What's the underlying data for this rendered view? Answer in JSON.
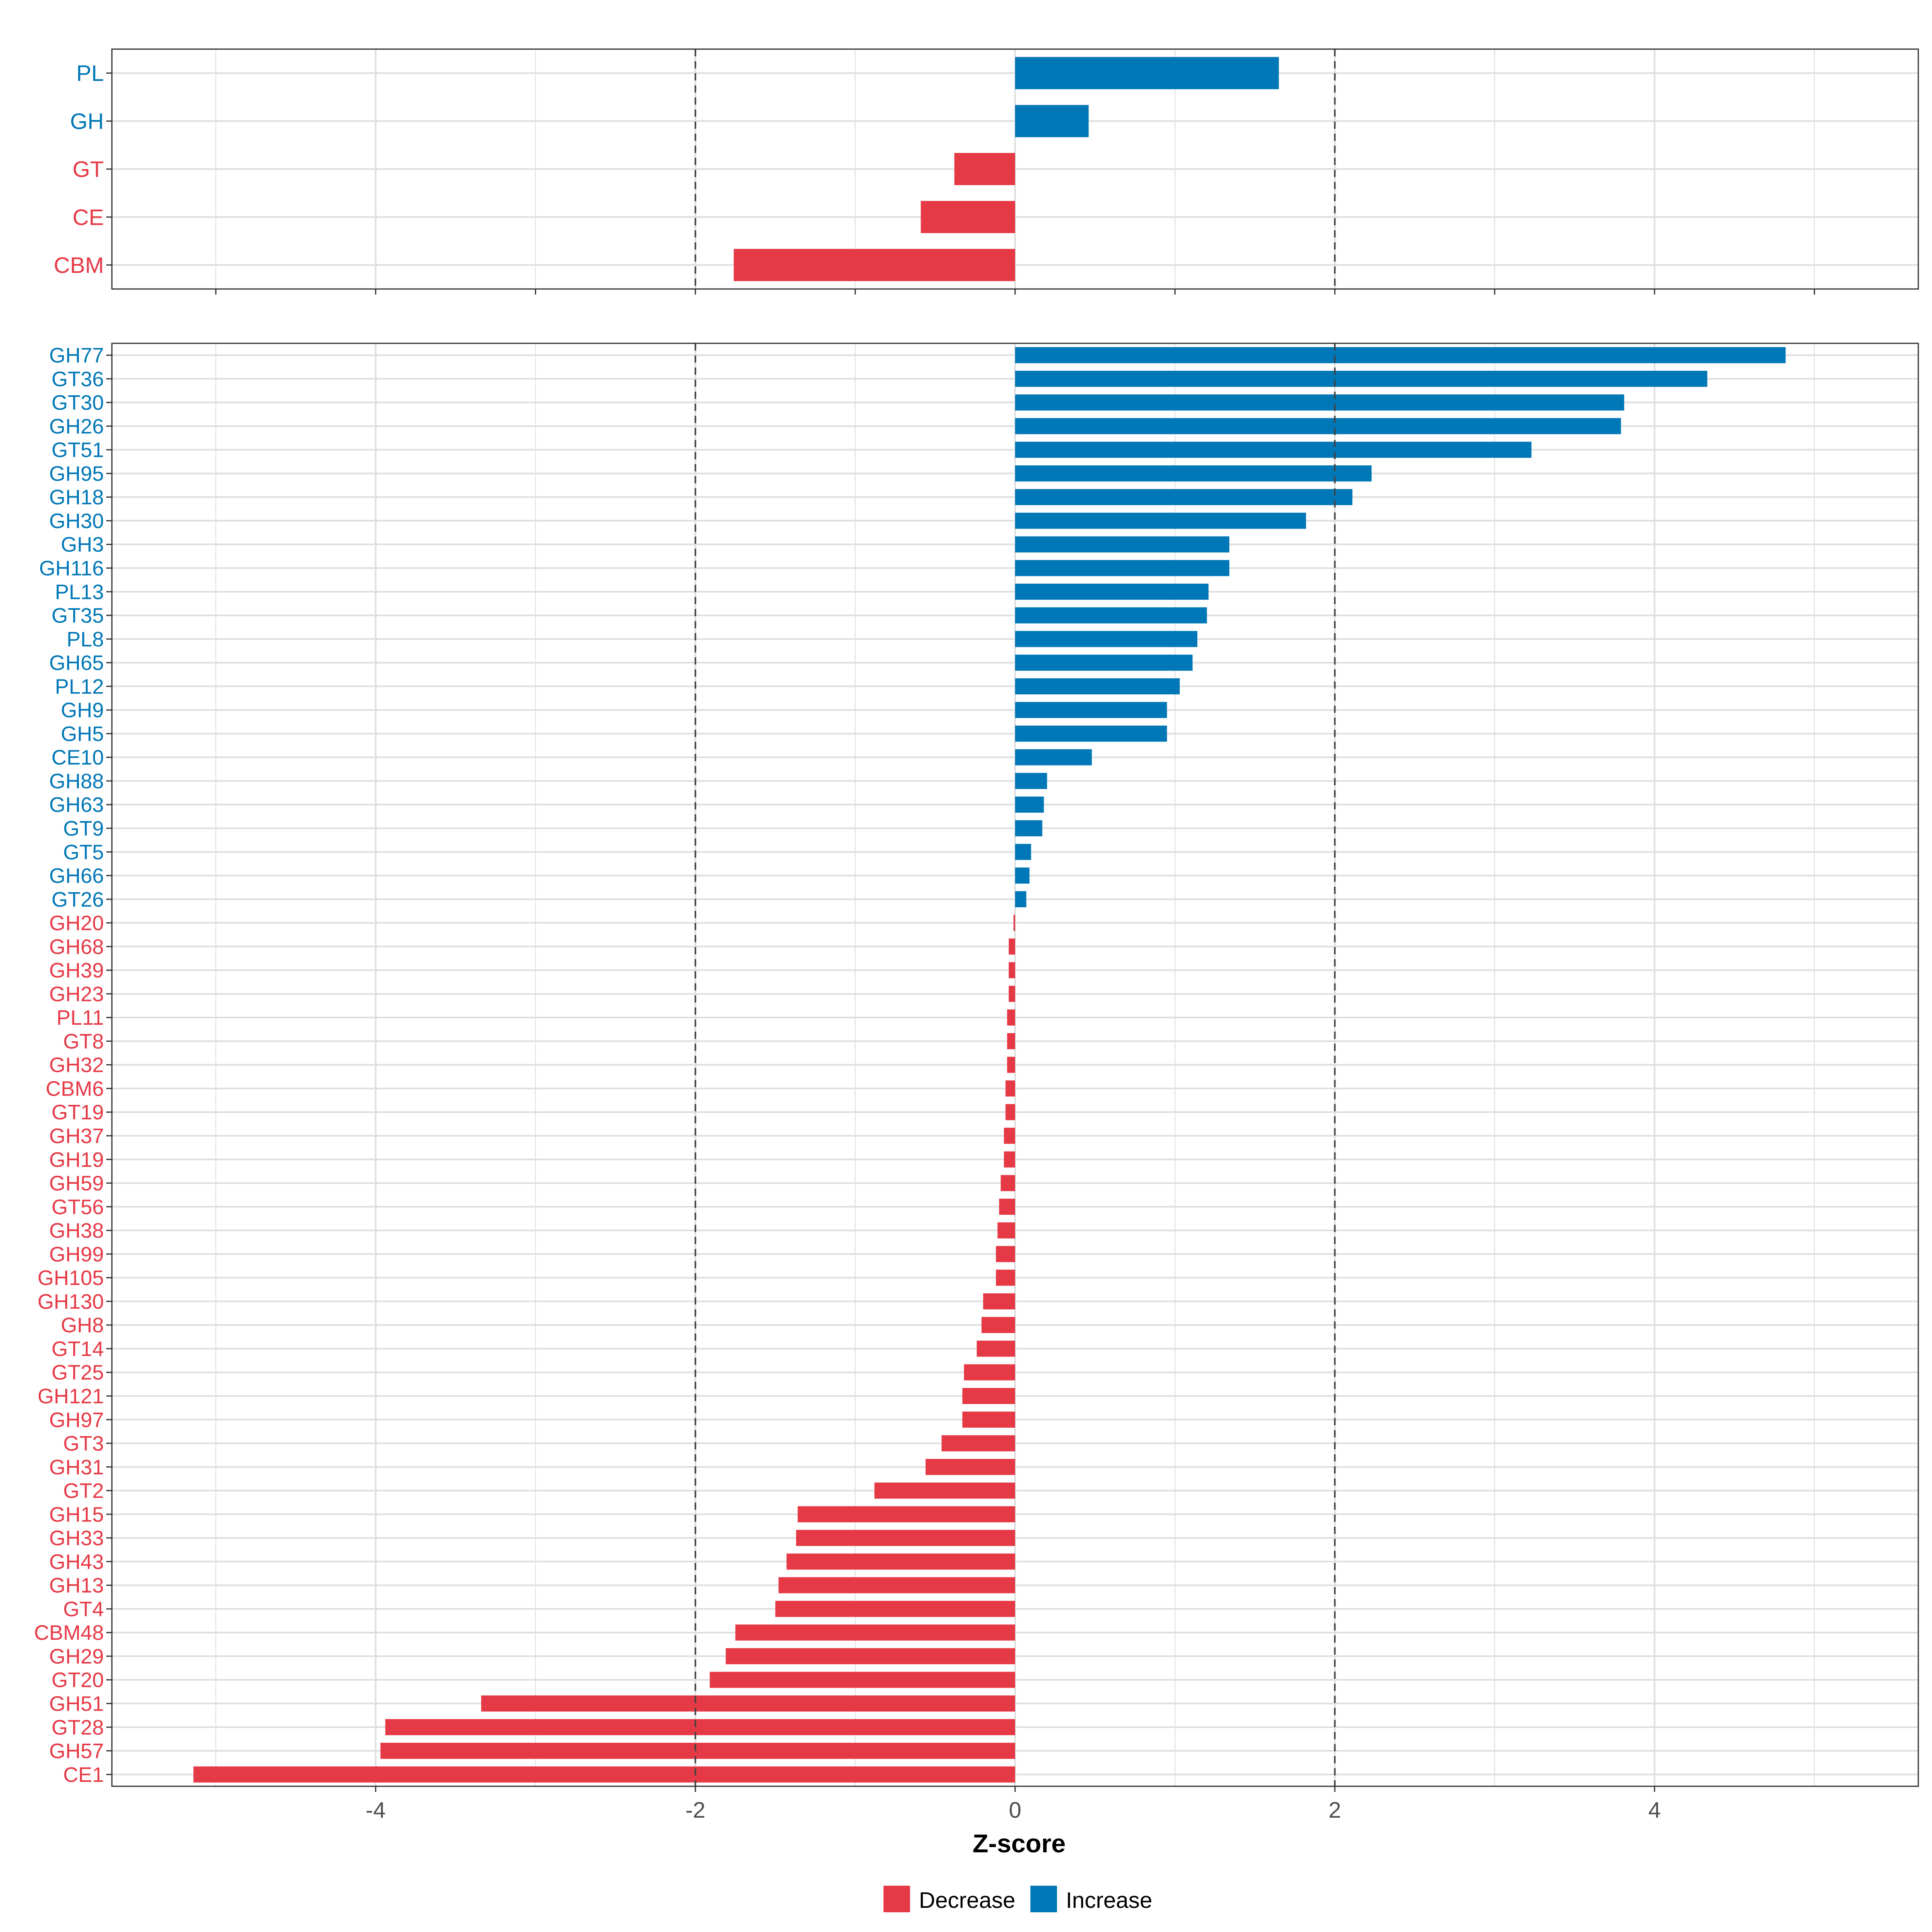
{
  "colors": {
    "decrease": "#E63946",
    "increase": "#0077B6",
    "grid": "#DEDEDE",
    "axis_text": "#4D4D4D",
    "border": "#333333",
    "reference_line": "#444444"
  },
  "chart_data": [
    {
      "type": "bar",
      "orientation": "horizontal",
      "panel": "class-level",
      "xlim": [
        -5.65,
        5.65
      ],
      "x_ticks": [
        -4,
        -2,
        0,
        2,
        4
      ],
      "x_tick_labels_visible": false,
      "reference_lines": [
        -2,
        2
      ],
      "grid": true,
      "categories": [
        "PL",
        "GH",
        "GT",
        "CE",
        "CBM"
      ],
      "values": [
        1.65,
        0.46,
        -0.38,
        -0.59,
        -1.76
      ]
    },
    {
      "type": "bar",
      "orientation": "horizontal",
      "panel": "family-level",
      "xlim": [
        -5.65,
        5.65
      ],
      "x_ticks": [
        -4,
        -2,
        0,
        2,
        4
      ],
      "x_tick_labels": [
        "-4",
        "-2",
        "0",
        "2",
        "4"
      ],
      "xlabel": "Z-score",
      "reference_lines": [
        -2,
        2
      ],
      "grid": true,
      "categories": [
        "GH77",
        "GT36",
        "GT30",
        "GH26",
        "GT51",
        "GH95",
        "GH18",
        "GH30",
        "GH3",
        "GH116",
        "PL13",
        "GT35",
        "PL8",
        "GH65",
        "PL12",
        "GH9",
        "GH5",
        "CE10",
        "GH88",
        "GH63",
        "GT9",
        "GT5",
        "GH66",
        "GT26",
        "GH20",
        "GH68",
        "GH39",
        "GH23",
        "PL11",
        "GT8",
        "GH32",
        "CBM6",
        "GT19",
        "GH37",
        "GH19",
        "GH59",
        "GT56",
        "GH38",
        "GH99",
        "GH105",
        "GH130",
        "GH8",
        "GT14",
        "GT25",
        "GH121",
        "GH97",
        "GT3",
        "GH31",
        "GT2",
        "GH15",
        "GH33",
        "GH43",
        "GH13",
        "GT4",
        "CBM48",
        "GH29",
        "GT20",
        "GH51",
        "GT28",
        "GH57",
        "CE1"
      ],
      "values": [
        4.82,
        4.33,
        3.81,
        3.79,
        3.23,
        2.23,
        2.11,
        1.82,
        1.34,
        1.34,
        1.21,
        1.2,
        1.14,
        1.11,
        1.03,
        0.95,
        0.95,
        0.48,
        0.2,
        0.18,
        0.17,
        0.1,
        0.09,
        0.07,
        -0.01,
        -0.04,
        -0.04,
        -0.04,
        -0.05,
        -0.05,
        -0.05,
        -0.06,
        -0.06,
        -0.07,
        -0.07,
        -0.09,
        -0.1,
        -0.11,
        -0.12,
        -0.12,
        -0.2,
        -0.21,
        -0.24,
        -0.32,
        -0.33,
        -0.33,
        -0.46,
        -0.56,
        -0.88,
        -1.36,
        -1.37,
        -1.43,
        -1.48,
        -1.5,
        -1.75,
        -1.81,
        -1.91,
        -3.34,
        -3.94,
        -3.97,
        -5.14
      ]
    }
  ],
  "legend": {
    "position": "bottom",
    "items": [
      {
        "label": "Decrease",
        "color_key": "decrease"
      },
      {
        "label": "Increase",
        "color_key": "increase"
      }
    ]
  }
}
